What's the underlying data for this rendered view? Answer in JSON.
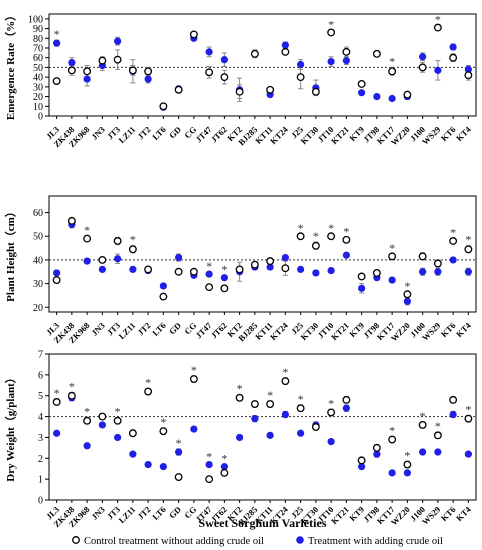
{
  "figure": {
    "xlabel": "Sweet Sorghum Varieties",
    "legend": {
      "control": "Control treatment without adding crude oil",
      "treatment": "Treatment with adding crude oil"
    }
  },
  "colors": {
    "control_edge": "#000000",
    "treatment": "#1f1fe6",
    "error": "#888888"
  },
  "categories": [
    "JL3",
    "ZK438",
    "ZK968",
    "JN3",
    "JT3",
    "LZ11",
    "JT2",
    "LT6",
    "GD",
    "CG",
    "JT47",
    "JT62",
    "KT2",
    "BJ285",
    "KT11",
    "KT24",
    "J25",
    "KT30",
    "JT10",
    "KT21",
    "KT9",
    "JT98",
    "KT17",
    "WZ20",
    "J100",
    "WS29",
    "KT6",
    "KT4"
  ],
  "chart_data": [
    {
      "type": "scatter",
      "ylabel": "Emergence Rate（%）",
      "ylim": [
        0,
        105
      ],
      "yticks": [
        0,
        10,
        20,
        30,
        40,
        50,
        60,
        70,
        80,
        90,
        100
      ],
      "reference_line": 50,
      "series": [
        {
          "name": "Control treatment without adding crude oil",
          "values": [
            36,
            47,
            46,
            57,
            58,
            47,
            46,
            10,
            27,
            84,
            45,
            40,
            25,
            64,
            27,
            66,
            40,
            25,
            86,
            66,
            33,
            64,
            46,
            22,
            50,
            91,
            60,
            42
          ],
          "errors": [
            2,
            5,
            6,
            4,
            10,
            5,
            4,
            2,
            3,
            2,
            6,
            7,
            7,
            4,
            2,
            3,
            12,
            3,
            2,
            5,
            2,
            3,
            4,
            2,
            5,
            2,
            4,
            5
          ]
        },
        {
          "name": "Treatment with adding crude oil",
          "values": [
            75,
            55,
            38,
            52,
            77,
            46,
            38,
            9,
            28,
            80,
            66,
            58,
            27,
            64,
            22,
            73,
            53,
            29,
            56,
            57,
            24,
            20,
            18,
            20,
            61,
            47,
            71,
            48
          ],
          "errors": [
            3,
            5,
            7,
            5,
            4,
            12,
            4,
            2,
            3,
            2,
            5,
            7,
            12,
            4,
            2,
            3,
            5,
            8,
            5,
            4,
            2,
            2,
            2,
            3,
            4,
            10,
            3,
            4
          ]
        }
      ],
      "annotations": {
        "star_indices": [
          0,
          18,
          22,
          25
        ]
      }
    },
    {
      "type": "scatter",
      "ylabel": "Plant Height（cm）",
      "ylim": [
        18,
        67
      ],
      "yticks": [
        20,
        30,
        40,
        50,
        60
      ],
      "reference_line": 40,
      "series": [
        {
          "name": "Control treatment without adding crude oil",
          "values": [
            31.5,
            56.5,
            49,
            40,
            48,
            44.5,
            36,
            24.5,
            35,
            35,
            28.5,
            28,
            36,
            38,
            39.5,
            36.5,
            50,
            46,
            50,
            48.5,
            33,
            34.5,
            41.5,
            25.5,
            41.5,
            38.5,
            48,
            44.5
          ],
          "errors": [
            1,
            1,
            1,
            1,
            1.5,
            1.5,
            1,
            1,
            1,
            1,
            1,
            1,
            1,
            1,
            1,
            3,
            1,
            1.5,
            1,
            1,
            1,
            1,
            1,
            1,
            1.5,
            1.5,
            1,
            1.5
          ]
        },
        {
          "name": "Treatment with adding crude oil",
          "values": [
            34.5,
            55,
            39.5,
            36,
            40.5,
            36,
            35.5,
            29,
            41,
            33.5,
            34,
            32.5,
            35,
            37,
            37,
            41,
            36,
            34.5,
            35.5,
            42,
            28,
            32.5,
            31.5,
            22.5,
            35,
            35,
            40,
            35
          ],
          "errors": [
            1,
            1.5,
            1,
            1,
            2,
            1,
            1,
            1,
            1.5,
            1,
            1,
            1,
            4,
            1,
            1,
            1,
            1,
            1,
            1,
            1,
            2,
            1,
            1,
            1.5,
            1.5,
            1.5,
            1,
            1.5
          ]
        }
      ],
      "annotations": {
        "star_indices": [
          2,
          5,
          10,
          11,
          16,
          17,
          18,
          19,
          22,
          23,
          26,
          27
        ]
      }
    },
    {
      "type": "scatter",
      "ylabel": "Dry Weight（g/plant）",
      "ylim": [
        0,
        7
      ],
      "yticks": [
        0,
        1,
        2,
        3,
        4,
        5,
        6,
        7
      ],
      "reference_line": 4,
      "series": [
        {
          "name": "Control treatment without adding crude oil",
          "values": [
            4.7,
            5.0,
            3.8,
            4.0,
            3.8,
            3.2,
            5.2,
            3.3,
            1.1,
            5.8,
            1.0,
            1.3,
            4.9,
            4.6,
            4.6,
            5.7,
            4.4,
            3.5,
            4.2,
            4.8,
            1.9,
            2.5,
            2.9,
            1.7,
            3.6,
            3.1,
            4.8,
            3.9
          ],
          "errors": [
            0.15,
            0.15,
            0.15,
            0.1,
            0.15,
            0.15,
            0.15,
            0.15,
            0.1,
            0.15,
            0.1,
            0.15,
            0.15,
            0.15,
            0.15,
            0.15,
            0.15,
            0.15,
            0.15,
            0.15,
            0.15,
            0.15,
            0.15,
            0.15,
            0.15,
            0.15,
            0.15,
            0.15
          ]
        },
        {
          "name": "Treatment with adding crude oil",
          "values": [
            3.2,
            4.9,
            2.6,
            3.6,
            3.0,
            2.2,
            1.7,
            1.6,
            2.3,
            3.4,
            1.7,
            1.6,
            3.0,
            3.9,
            3.1,
            4.1,
            3.2,
            3.6,
            2.8,
            4.4,
            1.6,
            2.2,
            1.3,
            1.3,
            2.3,
            2.3,
            4.1,
            2.2
          ],
          "errors": [
            0.1,
            0.15,
            0.1,
            0.1,
            0.1,
            0.1,
            0.1,
            0.1,
            0.15,
            0.1,
            0.1,
            0.1,
            0.1,
            0.15,
            0.1,
            0.15,
            0.1,
            0.15,
            0.1,
            0.15,
            0.1,
            0.15,
            0.1,
            0.1,
            0.1,
            0.1,
            0.15,
            0.1
          ]
        }
      ],
      "annotations": {
        "star_indices": [
          0,
          1,
          2,
          4,
          6,
          7,
          8,
          9,
          10,
          11,
          12,
          14,
          15,
          16,
          18,
          22,
          23,
          24,
          25,
          27
        ]
      }
    }
  ]
}
